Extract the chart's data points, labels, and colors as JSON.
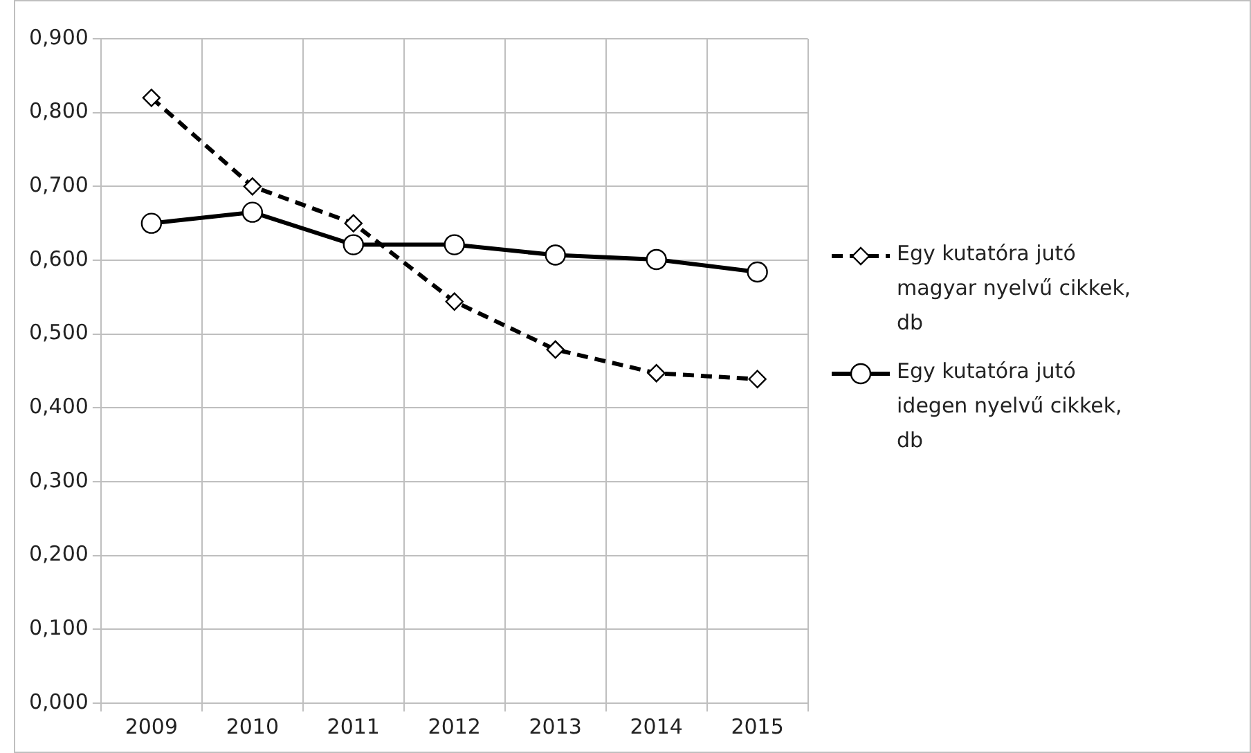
{
  "chart_data": {
    "type": "line",
    "categories": [
      "2009",
      "2010",
      "2011",
      "2012",
      "2013",
      "2014",
      "2015"
    ],
    "series": [
      {
        "name": "Egy kutatóra jutó magyar nyelvű cikkek, db",
        "color": "#000000",
        "values": [
          0.82,
          0.7,
          0.65,
          0.544,
          0.479,
          0.447,
          0.439
        ],
        "marker": "diamond",
        "line_style": "dashed"
      },
      {
        "name": "Egy kutatóra jutó idegen nyelvű cikkek, db",
        "color": "#000000",
        "values": [
          0.65,
          0.665,
          0.621,
          0.621,
          0.607,
          0.601,
          0.584
        ],
        "marker": "circle",
        "line_style": "solid"
      }
    ],
    "ylim": [
      0,
      0.9
    ],
    "yticks": [
      {
        "value": 0,
        "label": "0,000"
      },
      {
        "value": 0.1,
        "label": "0,100"
      },
      {
        "value": 0.2,
        "label": "0,200"
      },
      {
        "value": 0.3,
        "label": "0,300"
      },
      {
        "value": 0.4,
        "label": "0,400"
      },
      {
        "value": 0.5,
        "label": "0,500"
      },
      {
        "value": 0.6,
        "label": "0,600"
      },
      {
        "value": 0.7,
        "label": "0,700"
      },
      {
        "value": 0.8,
        "label": "0,800"
      },
      {
        "value": 0.9,
        "label": "0,900"
      }
    ],
    "grid": true,
    "legend": "right"
  }
}
